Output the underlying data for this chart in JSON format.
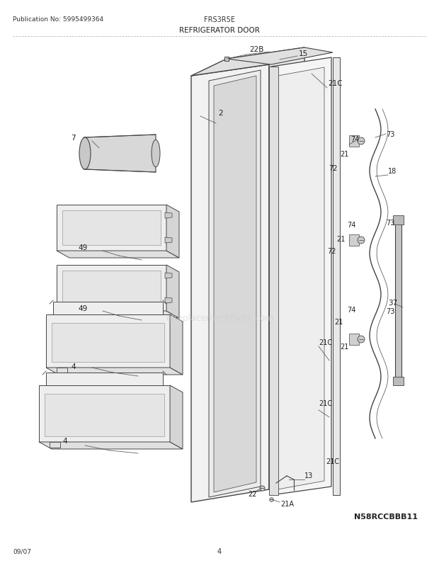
{
  "title": "REFRIGERATOR DOOR",
  "model": "FRS3R5E",
  "pub_no": "Publication No: 5995499364",
  "diagram_id": "N58RCCBBB11",
  "date": "09/07",
  "page": "4",
  "bg_color": "#ffffff",
  "line_color": "#444444",
  "watermark": "eReplacementParts.com",
  "fig_w": 6.2,
  "fig_h": 8.03
}
